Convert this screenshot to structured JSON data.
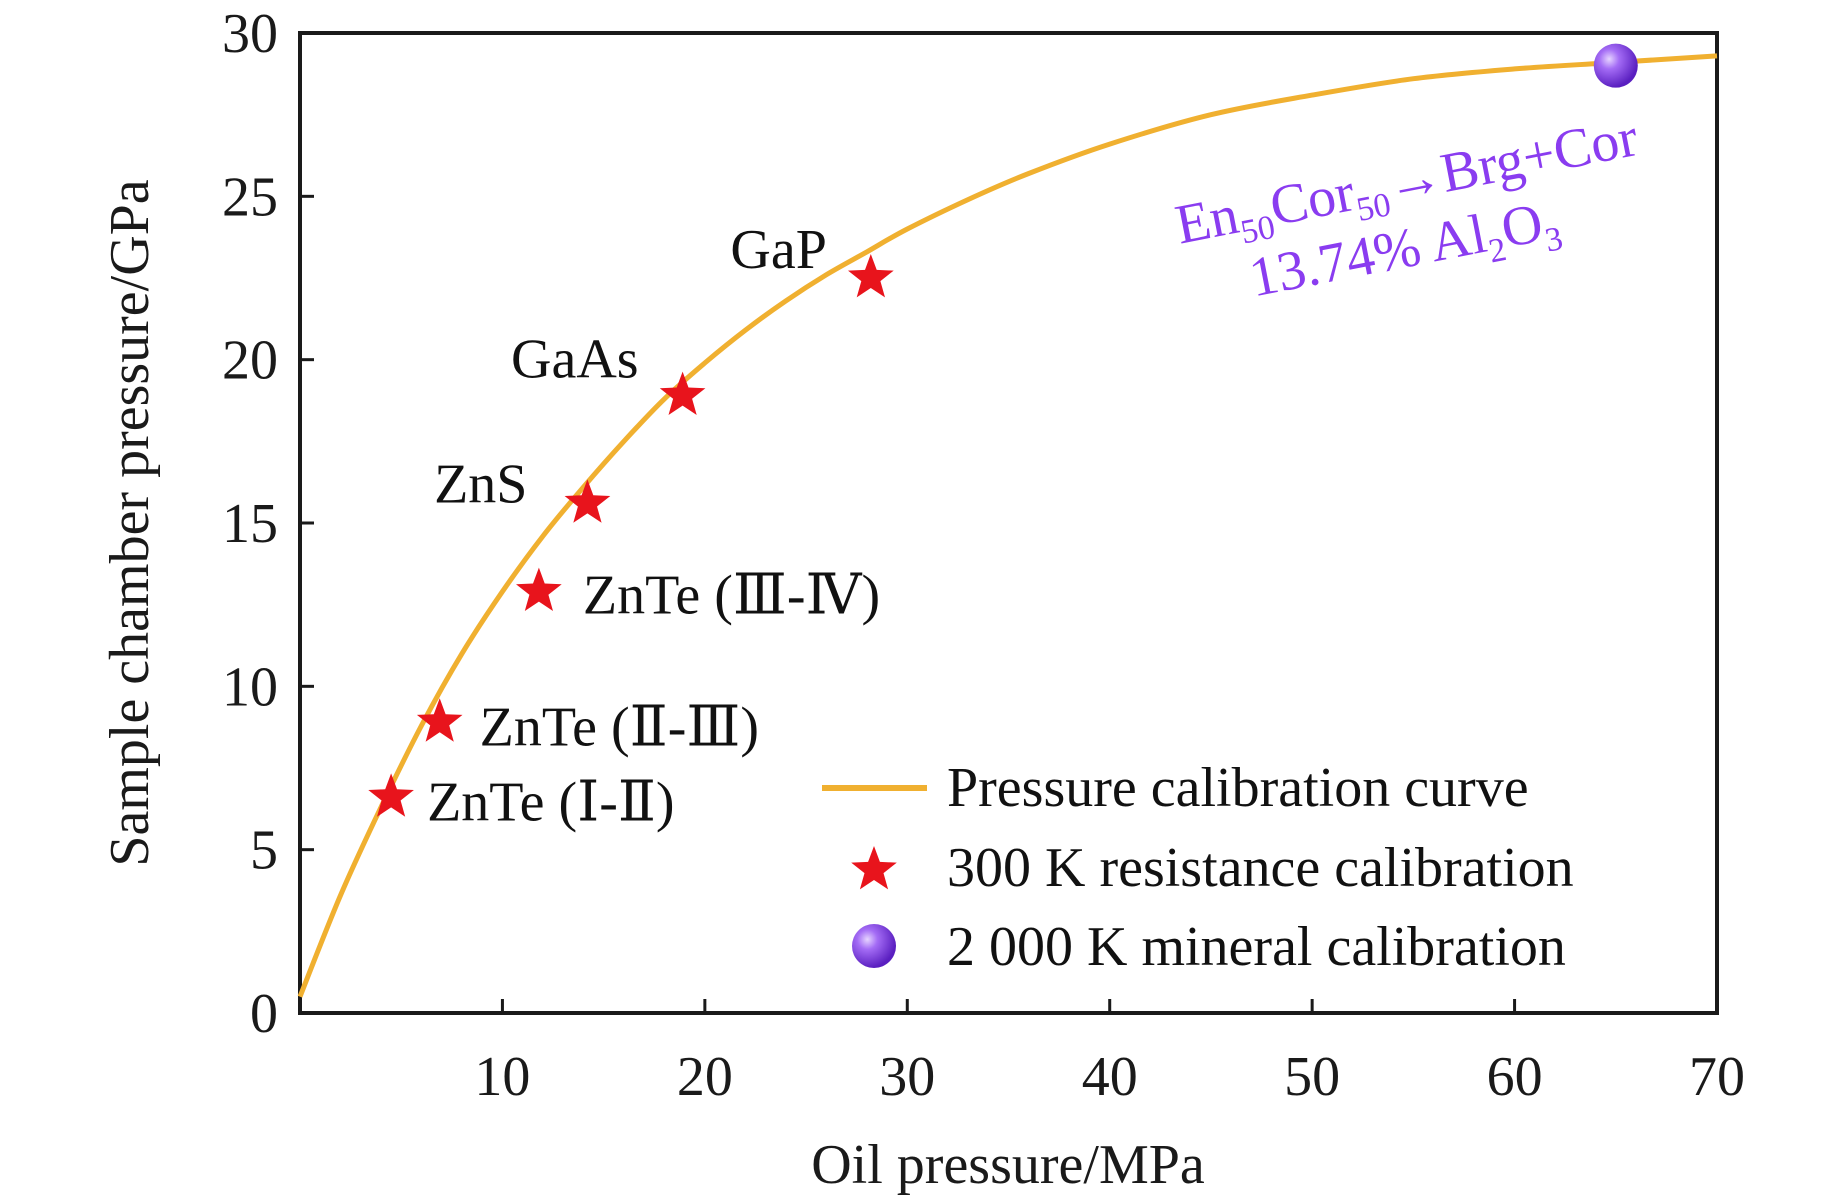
{
  "chart_data": {
    "type": "scatter",
    "x_label": "Oil pressure/MPa",
    "y_label": "Sample chamber pressure/GPa",
    "xlim": [
      0,
      70
    ],
    "ylim": [
      0,
      30
    ],
    "x_ticks": [
      "10",
      "20",
      "30",
      "40",
      "50",
      "60",
      "70"
    ],
    "x_tick_values": [
      10,
      20,
      30,
      40,
      50,
      60,
      70
    ],
    "y_ticks": [
      "0",
      "5",
      "10",
      "15",
      "20",
      "25",
      "30"
    ],
    "y_tick_values": [
      0,
      5,
      10,
      15,
      20,
      25,
      30
    ],
    "grid": false,
    "legend_position": "bottom-right",
    "legend": [
      {
        "label": "Pressure calibration curve",
        "marker": "line",
        "color": "#f0b030"
      },
      {
        "label": "300 K resistance calibration",
        "marker": "star",
        "color": "#e8141c"
      },
      {
        "label": "2 000 K mineral calibration",
        "marker": "sphere",
        "color": "#8a3cf0"
      }
    ],
    "series": [
      {
        "name": "Pressure calibration curve",
        "kind": "line",
        "color": "#f0b030",
        "x": [
          0,
          2,
          4,
          6,
          8,
          10,
          12,
          14,
          16,
          18,
          20,
          22,
          24,
          26,
          28,
          30,
          33,
          36,
          40,
          45,
          50,
          55,
          60,
          65,
          70
        ],
        "y": [
          0.5,
          3.6,
          6.3,
          8.8,
          11.0,
          12.9,
          14.6,
          16.1,
          17.5,
          18.8,
          19.9,
          20.9,
          21.8,
          22.6,
          23.3,
          24.0,
          24.9,
          25.7,
          26.6,
          27.5,
          28.1,
          28.6,
          28.9,
          29.1,
          29.3
        ]
      },
      {
        "name": "300 K resistance calibration",
        "kind": "scatter",
        "color": "#e8141c",
        "x": [
          4.5,
          6.9,
          11.8,
          14.2,
          18.9,
          28.2
        ],
        "y": [
          6.6,
          8.9,
          12.9,
          15.6,
          18.9,
          22.5
        ]
      },
      {
        "name": "2 000 K mineral calibration",
        "kind": "scatter",
        "color": "#8a3cf0",
        "x": [
          65
        ],
        "y": [
          29.0
        ]
      }
    ],
    "annotations": [
      {
        "text": "ZnTe (Ⅰ-Ⅱ)",
        "x": 4.5,
        "y": 6.6
      },
      {
        "text": "ZnTe (Ⅱ-Ⅲ)",
        "x": 6.9,
        "y": 8.9
      },
      {
        "text": "ZnTe (Ⅲ-Ⅳ)",
        "x": 11.8,
        "y": 12.9
      },
      {
        "text": "ZnS",
        "x": 14.2,
        "y": 15.6
      },
      {
        "text": "GaAs",
        "x": 18.9,
        "y": 18.9
      },
      {
        "text": "GaP",
        "x": 28.2,
        "y": 22.5
      }
    ],
    "mineral_note": {
      "line1_parts": [
        "En",
        "50",
        "Cor",
        "50",
        "→Brg+Cor"
      ],
      "line2_parts": [
        "13.74% Al",
        "2",
        "O",
        "3"
      ],
      "color": "#8a3cf0"
    }
  }
}
